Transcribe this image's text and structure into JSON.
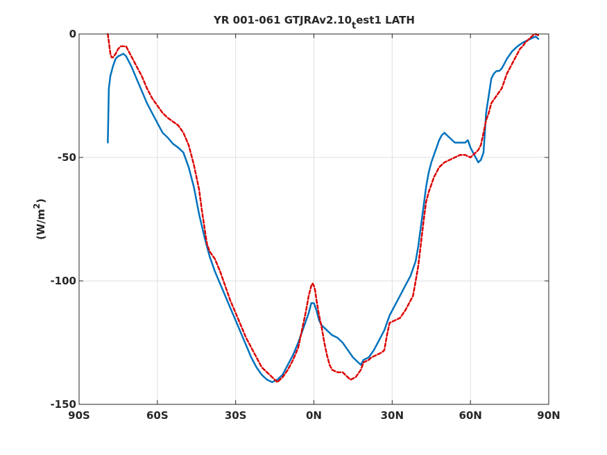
{
  "chart_data": {
    "type": "line",
    "title": {
      "main": "YR 001-061 GTJRAv2.10",
      "sub": "t",
      "tail": "est1 LATH"
    },
    "xlabel": "",
    "ylabel": {
      "prefix": "(W/m",
      "sup": "2",
      "suffix": ")"
    },
    "xlim": [
      -90,
      90
    ],
    "ylim": [
      -150,
      0
    ],
    "grid": true,
    "xticks": [
      {
        "value": -90,
        "label": "90S"
      },
      {
        "value": -60,
        "label": "60S"
      },
      {
        "value": -30,
        "label": "30S"
      },
      {
        "value": 0,
        "label": "0N"
      },
      {
        "value": 30,
        "label": "30N"
      },
      {
        "value": 60,
        "label": "60N"
      },
      {
        "value": 90,
        "label": "90N"
      }
    ],
    "yticks": [
      {
        "value": 0,
        "label": "0"
      },
      {
        "value": -50,
        "label": "-50"
      },
      {
        "value": -100,
        "label": "-100"
      },
      {
        "value": -150,
        "label": "-150"
      }
    ],
    "series": [
      {
        "color": "#0072BD",
        "style": "solid",
        "points": [
          [
            -79,
            -44
          ],
          [
            -78.8,
            -34
          ],
          [
            -78.6,
            -22
          ],
          [
            -78,
            -17
          ],
          [
            -77,
            -13
          ],
          [
            -76,
            -10
          ],
          [
            -75,
            -9
          ],
          [
            -74,
            -8.5
          ],
          [
            -73,
            -8
          ],
          [
            -72,
            -9
          ],
          [
            -71,
            -11
          ],
          [
            -70,
            -13
          ],
          [
            -68,
            -18
          ],
          [
            -66,
            -23
          ],
          [
            -64,
            -28
          ],
          [
            -62,
            -32
          ],
          [
            -60,
            -36
          ],
          [
            -58,
            -40
          ],
          [
            -56,
            -42
          ],
          [
            -54,
            -44.5
          ],
          [
            -52,
            -46
          ],
          [
            -50,
            -48
          ],
          [
            -48,
            -54
          ],
          [
            -46,
            -62
          ],
          [
            -44,
            -73
          ],
          [
            -42,
            -82
          ],
          [
            -40,
            -90
          ],
          [
            -38,
            -96
          ],
          [
            -36,
            -101
          ],
          [
            -34,
            -106
          ],
          [
            -32,
            -111
          ],
          [
            -30,
            -116
          ],
          [
            -28,
            -121
          ],
          [
            -26,
            -126
          ],
          [
            -24,
            -131
          ],
          [
            -22,
            -135
          ],
          [
            -20,
            -138
          ],
          [
            -18,
            -140
          ],
          [
            -16,
            -141
          ],
          [
            -14,
            -140
          ],
          [
            -12,
            -138
          ],
          [
            -10,
            -134
          ],
          [
            -8,
            -130
          ],
          [
            -6,
            -125
          ],
          [
            -4,
            -119
          ],
          [
            -2,
            -113
          ],
          [
            -1,
            -109
          ],
          [
            0,
            -109
          ],
          [
            1,
            -112
          ],
          [
            2,
            -116
          ],
          [
            3,
            -118
          ],
          [
            5,
            -120
          ],
          [
            7,
            -122
          ],
          [
            9,
            -123
          ],
          [
            11,
            -125
          ],
          [
            13,
            -128
          ],
          [
            15,
            -131
          ],
          [
            17,
            -133
          ],
          [
            18,
            -134
          ],
          [
            19,
            -132
          ],
          [
            21,
            -131
          ],
          [
            23,
            -128
          ],
          [
            25,
            -124
          ],
          [
            27,
            -120
          ],
          [
            29,
            -114
          ],
          [
            31,
            -110
          ],
          [
            33,
            -106
          ],
          [
            35,
            -102
          ],
          [
            37,
            -98
          ],
          [
            39,
            -92
          ],
          [
            40,
            -86
          ],
          [
            41,
            -78
          ],
          [
            42,
            -70
          ],
          [
            43,
            -62
          ],
          [
            44,
            -56
          ],
          [
            45,
            -52
          ],
          [
            46,
            -49
          ],
          [
            47,
            -46
          ],
          [
            48,
            -43
          ],
          [
            49,
            -41
          ],
          [
            50,
            -40
          ],
          [
            51,
            -41
          ],
          [
            52,
            -42
          ],
          [
            54,
            -44
          ],
          [
            56,
            -44
          ],
          [
            58,
            -44
          ],
          [
            59,
            -43
          ],
          [
            60,
            -46
          ],
          [
            61,
            -48
          ],
          [
            62,
            -50
          ],
          [
            63,
            -52
          ],
          [
            64,
            -51
          ],
          [
            65,
            -48
          ],
          [
            65.5,
            -40
          ],
          [
            66,
            -32
          ],
          [
            67,
            -25
          ],
          [
            68,
            -18
          ],
          [
            69,
            -16
          ],
          [
            70,
            -15
          ],
          [
            71,
            -15
          ],
          [
            72,
            -14
          ],
          [
            73,
            -12
          ],
          [
            74,
            -10
          ],
          [
            76,
            -7
          ],
          [
            78,
            -5
          ],
          [
            80,
            -3.5
          ],
          [
            82,
            -2.5
          ],
          [
            84,
            -1.5
          ],
          [
            85,
            -1
          ],
          [
            86,
            -2
          ]
        ]
      },
      {
        "color": "#DD0000",
        "style": "dashed",
        "points": [
          [
            -79,
            0
          ],
          [
            -78.5,
            -4
          ],
          [
            -78,
            -8
          ],
          [
            -77.5,
            -9.5
          ],
          [
            -77,
            -9.5
          ],
          [
            -76,
            -8
          ],
          [
            -75,
            -6
          ],
          [
            -74,
            -5
          ],
          [
            -72,
            -5
          ],
          [
            -71,
            -7
          ],
          [
            -70,
            -9
          ],
          [
            -69,
            -11
          ],
          [
            -68,
            -13
          ],
          [
            -66,
            -17
          ],
          [
            -64,
            -22
          ],
          [
            -62,
            -26
          ],
          [
            -60,
            -29
          ],
          [
            -58,
            -32
          ],
          [
            -56,
            -34
          ],
          [
            -54,
            -35.5
          ],
          [
            -52,
            -37
          ],
          [
            -50,
            -40
          ],
          [
            -48,
            -45
          ],
          [
            -46,
            -53
          ],
          [
            -44,
            -63
          ],
          [
            -43,
            -71
          ],
          [
            -42,
            -78
          ],
          [
            -41,
            -85
          ],
          [
            -40,
            -88
          ],
          [
            -38,
            -91
          ],
          [
            -36,
            -96
          ],
          [
            -34,
            -102
          ],
          [
            -32,
            -108
          ],
          [
            -30,
            -113
          ],
          [
            -28,
            -118
          ],
          [
            -26,
            -123
          ],
          [
            -24,
            -127
          ],
          [
            -22,
            -131
          ],
          [
            -20,
            -135
          ],
          [
            -18,
            -137
          ],
          [
            -16,
            -139
          ],
          [
            -14,
            -141
          ],
          [
            -13,
            -140
          ],
          [
            -12,
            -139
          ],
          [
            -10,
            -136
          ],
          [
            -8,
            -132
          ],
          [
            -6,
            -127
          ],
          [
            -5,
            -122
          ],
          [
            -4,
            -117
          ],
          [
            -3,
            -112
          ],
          [
            -2,
            -106
          ],
          [
            -1,
            -102
          ],
          [
            -0.5,
            -101
          ],
          [
            0,
            -102
          ],
          [
            0.5,
            -104
          ],
          [
            1,
            -108
          ],
          [
            2,
            -114
          ],
          [
            3,
            -119
          ],
          [
            4,
            -125
          ],
          [
            5,
            -130
          ],
          [
            6,
            -134
          ],
          [
            7,
            -136
          ],
          [
            9,
            -137
          ],
          [
            11,
            -137
          ],
          [
            13,
            -139
          ],
          [
            14,
            -140
          ],
          [
            16,
            -139
          ],
          [
            18,
            -136
          ],
          [
            19,
            -133
          ],
          [
            21,
            -132
          ],
          [
            22,
            -131
          ],
          [
            24,
            -130
          ],
          [
            26,
            -129
          ],
          [
            27,
            -128
          ],
          [
            28,
            -122
          ],
          [
            29,
            -117
          ],
          [
            31,
            -116
          ],
          [
            33,
            -115
          ],
          [
            35,
            -112
          ],
          [
            37,
            -108
          ],
          [
            38,
            -106
          ],
          [
            39,
            -100
          ],
          [
            40,
            -94
          ],
          [
            41,
            -85
          ],
          [
            42,
            -76
          ],
          [
            43,
            -68
          ],
          [
            44,
            -64
          ],
          [
            45,
            -61
          ],
          [
            46,
            -58
          ],
          [
            47,
            -56
          ],
          [
            48,
            -54
          ],
          [
            50,
            -52
          ],
          [
            52,
            -51
          ],
          [
            54,
            -50
          ],
          [
            56,
            -49
          ],
          [
            58,
            -49
          ],
          [
            60,
            -50
          ],
          [
            61,
            -49
          ],
          [
            62,
            -48
          ],
          [
            63,
            -47
          ],
          [
            64,
            -45
          ],
          [
            65,
            -40
          ],
          [
            66,
            -35
          ],
          [
            67,
            -32
          ],
          [
            68,
            -28
          ],
          [
            70,
            -25
          ],
          [
            72,
            -22
          ],
          [
            73,
            -19
          ],
          [
            74,
            -16
          ],
          [
            75,
            -14
          ],
          [
            76,
            -12
          ],
          [
            77,
            -10
          ],
          [
            78,
            -8
          ],
          [
            79,
            -6
          ],
          [
            80,
            -5
          ],
          [
            81,
            -3.5
          ],
          [
            82,
            -2.5
          ],
          [
            83,
            -1.5
          ],
          [
            84,
            -0.5
          ],
          [
            85,
            0
          ],
          [
            86,
            -0.5
          ]
        ]
      }
    ]
  }
}
